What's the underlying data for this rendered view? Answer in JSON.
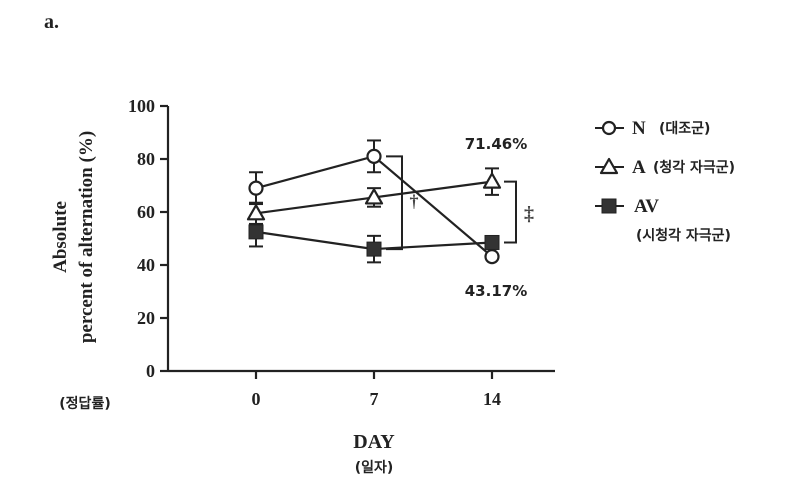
{
  "panel_label": "a.",
  "chart_data": {
    "type": "line",
    "x": [
      0,
      7,
      14
    ],
    "xticks": [
      "0",
      "7",
      "14"
    ],
    "xlabel": "DAY",
    "xlabel_sub": "(일자)",
    "ylabel_line1": "Absolute",
    "ylabel_line2": "percent of alternation (%)",
    "ylabel_sub": "(정답률)",
    "ylim": [
      0,
      100
    ],
    "yticks": [
      "0",
      "20",
      "40",
      "60",
      "80",
      "100"
    ],
    "series": [
      {
        "name": "N",
        "name_sub": "(대조군)",
        "marker": "circle-open",
        "values": [
          69,
          81,
          43.17
        ],
        "errors": [
          6,
          6,
          0
        ]
      },
      {
        "name": "A",
        "name_sub": "(청각 자극군)",
        "marker": "triangle-open",
        "values": [
          59.5,
          65.5,
          71.46
        ],
        "errors": [
          4,
          3.5,
          5
        ]
      },
      {
        "name": "AV",
        "name_sub": "(시청각 자극군)",
        "marker": "square-filled",
        "values": [
          52.5,
          46,
          48.5
        ],
        "errors": [
          5.5,
          5,
          0
        ]
      }
    ],
    "annotations": {
      "upper_value": "71.46%",
      "lower_value": "43.17%",
      "dagger": "†",
      "double_dagger": "‡"
    },
    "legend_placement": "right",
    "grid": false,
    "color": "#222222"
  }
}
